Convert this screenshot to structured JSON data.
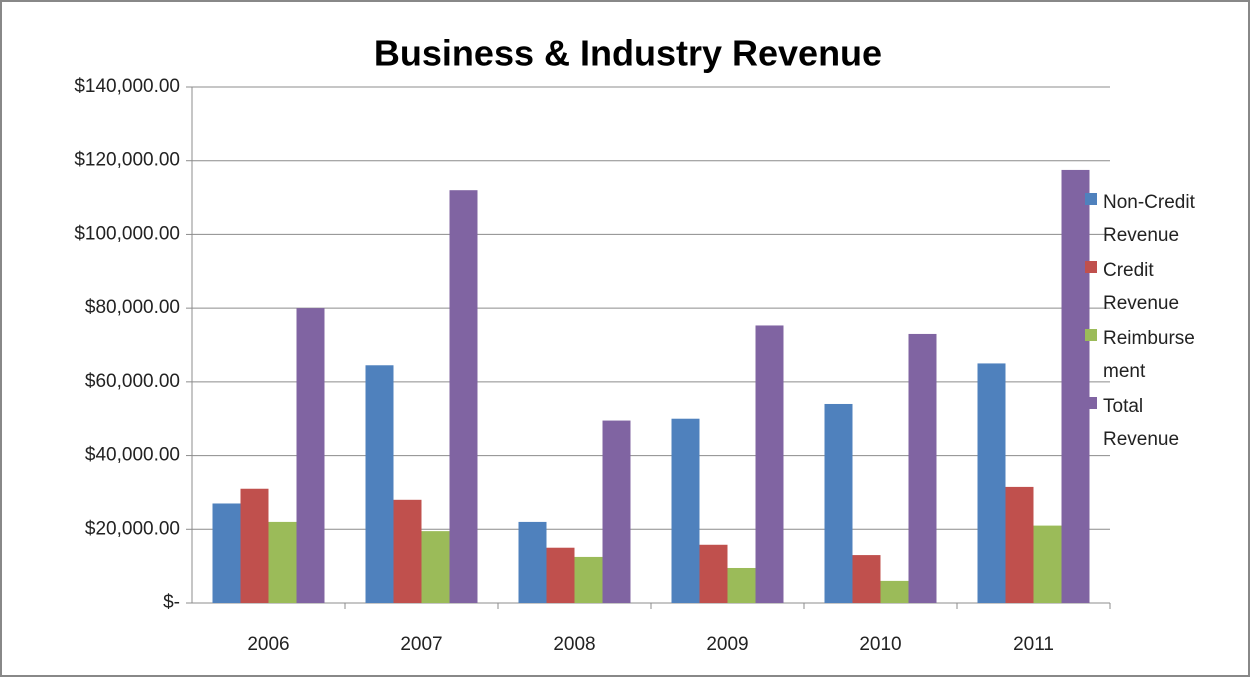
{
  "chart_data": {
    "type": "bar",
    "title": "Business & Industry Revenue",
    "categories": [
      "2006",
      "2007",
      "2008",
      "2009",
      "2010",
      "2011"
    ],
    "series": [
      {
        "name": "Non-Credit Revenue",
        "color": "#4f81bd",
        "values": [
          27000,
          64500,
          22000,
          50000,
          54000,
          65000
        ]
      },
      {
        "name": "Credit Revenue",
        "color": "#c0504d",
        "values": [
          31000,
          28000,
          15000,
          15800,
          13000,
          31500
        ]
      },
      {
        "name": "Reimbursement",
        "color": "#9bbb59",
        "values": [
          22000,
          19500,
          12500,
          9500,
          6000,
          21000
        ]
      },
      {
        "name": "Total Revenue",
        "color": "#8064a2",
        "values": [
          80000,
          112000,
          49500,
          75300,
          73000,
          117500
        ]
      }
    ],
    "ylim": [
      0,
      140000
    ],
    "yticks": [
      {
        "value": 0,
        "label": "$-"
      },
      {
        "value": 20000,
        "label": "$20,000.00"
      },
      {
        "value": 40000,
        "label": "$40,000.00"
      },
      {
        "value": 60000,
        "label": "$60,000.00"
      },
      {
        "value": 80000,
        "label": "$80,000.00"
      },
      {
        "value": 100000,
        "label": "$100,000.00"
      },
      {
        "value": 120000,
        "label": "$120,000.00"
      },
      {
        "value": 140000,
        "label": "$140,000.00"
      }
    ],
    "grid": true,
    "legend": "right"
  }
}
